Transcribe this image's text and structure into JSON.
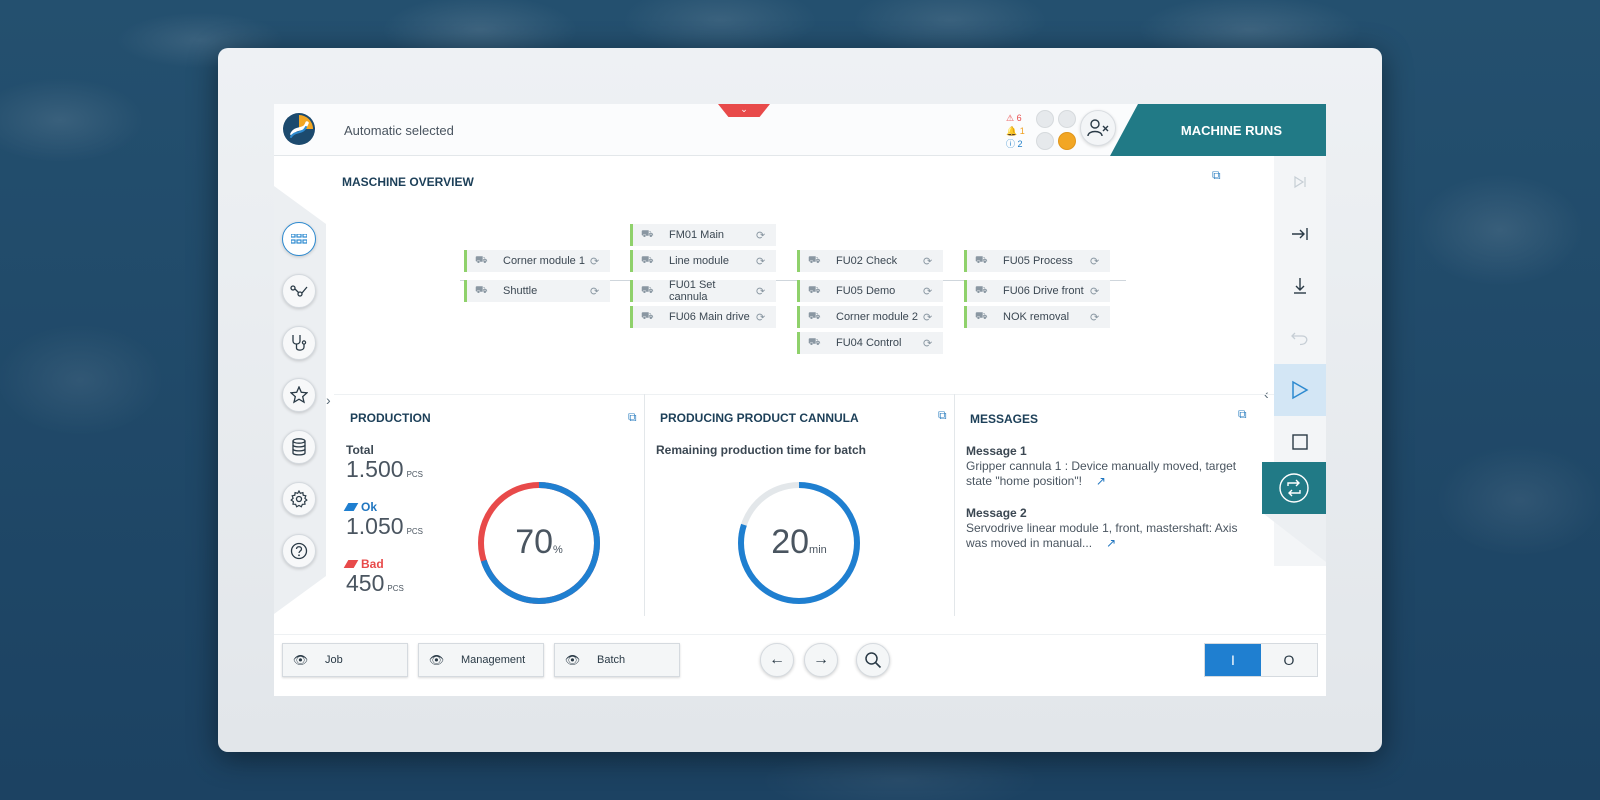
{
  "header": {
    "status_text": "Automatic selected",
    "dropdown_symbol": "⌄",
    "alerts": {
      "errors": "6",
      "warnings": "1",
      "infos": "2"
    },
    "machine_state": "MACHINE RUNS"
  },
  "overview": {
    "title": "MASCHINE OVERVIEW",
    "modules": [
      {
        "label": "FM01 Main"
      },
      {
        "label": "Corner module 1"
      },
      {
        "label": "Line module"
      },
      {
        "label": "FU02 Check"
      },
      {
        "label": "FU05 Process"
      },
      {
        "label": "Shuttle"
      },
      {
        "label": "FU01 Set cannula"
      },
      {
        "label": "FU05 Demo"
      },
      {
        "label": "FU06 Drive front"
      },
      {
        "label": "FU06 Main drive"
      },
      {
        "label": "Corner module 2"
      },
      {
        "label": "NOK removal"
      },
      {
        "label": "FU04 Control"
      }
    ]
  },
  "production": {
    "title": "PRODUCTION",
    "total_label": "Total",
    "total_value": "1.500",
    "ok_label": "Ok",
    "ok_value": "1.050",
    "bad_label": "Bad",
    "bad_value": "450",
    "unit": "PCS",
    "gauge_value": "70",
    "gauge_unit": "%",
    "gauge_fraction": 0.7,
    "colors": {
      "ok": "#1f7fd0",
      "bad": "#e84a4a"
    }
  },
  "producing": {
    "title": "PRODUCING PRODUCT CANNULA",
    "subtitle": "Remaining production time for batch",
    "gauge_value": "20",
    "gauge_unit": "min",
    "gauge_fraction": 0.8
  },
  "messages": {
    "title": "MESSAGES",
    "items": [
      {
        "title": "Message 1",
        "body": "Gripper cannula 1 : Device manually moved, target state \"home position\"!"
      },
      {
        "title": "Message 2",
        "body": "Servodrive linear module 1, front, mastershaft: Axis was moved in manual..."
      }
    ]
  },
  "bottom": {
    "job": "Job",
    "management": "Management",
    "batch": "Batch",
    "toggle_on": "I",
    "toggle_off": "O"
  },
  "icons": {
    "left_nav": [
      "grid-icon",
      "route-icon",
      "stethoscope-icon",
      "star-icon",
      "database-icon",
      "gear-icon",
      "help-icon"
    ],
    "right_nav": [
      "skip-end-icon",
      "jump-to-end-icon",
      "step-down-icon",
      "undo-icon",
      "play-icon",
      "stop-icon",
      "cycle-icon"
    ]
  },
  "colors": {
    "accent": "#217a86",
    "primary": "#1f7fd0",
    "alert": "#e84a4a",
    "module_ok": "#8fd16b"
  }
}
